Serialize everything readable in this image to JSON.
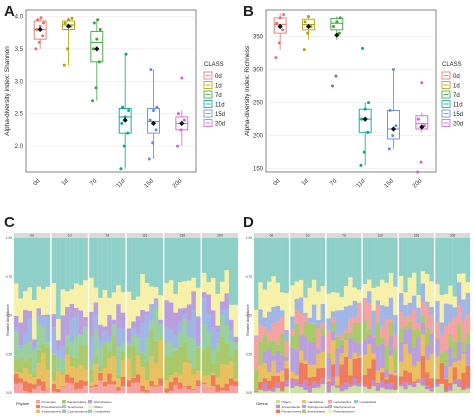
{
  "panels": [
    {
      "id": "A",
      "label": "A"
    },
    {
      "id": "B",
      "label": "B"
    },
    {
      "id": "C",
      "label": "C"
    },
    {
      "id": "D",
      "label": "D"
    }
  ],
  "legend": {
    "title": "CLASS",
    "items": [
      {
        "label": "0d",
        "color": "#e8736d"
      },
      {
        "label": "1d",
        "color": "#b79f00"
      },
      {
        "label": "7d",
        "color": "#3aa33a"
      },
      {
        "label": "11d",
        "color": "#00a5a5"
      },
      {
        "label": "15d",
        "color": "#5b8fe0"
      },
      {
        "label": "20d",
        "color": "#d65fd6"
      }
    ]
  },
  "chart_data": [
    {
      "panel": "A",
      "type": "box",
      "ylabel": "Alpha-diversity index: Shannon",
      "categories": [
        "0d",
        "1d",
        "7d",
        "11d",
        "15d",
        "20d"
      ],
      "ylim": [
        1.6,
        4.1
      ],
      "yticks": [
        2.0,
        2.5,
        3.0,
        3.5,
        4.0
      ],
      "ytick_labels": [
        "2.0",
        "2.5",
        "3.0",
        "3.5",
        "4.0"
      ],
      "boxes": [
        {
          "min": 3.5,
          "q1": 3.65,
          "median": 3.8,
          "q3": 3.93,
          "max": 3.98,
          "mean": 3.8,
          "points": [
            3.5,
            3.6,
            3.7,
            3.8,
            3.85,
            3.9,
            3.95,
            3.98
          ]
        },
        {
          "min": 3.25,
          "q1": 3.8,
          "median": 3.87,
          "q3": 3.93,
          "max": 3.98,
          "mean": 3.85,
          "points": [
            3.25,
            3.5,
            3.85,
            3.9,
            3.95,
            3.97
          ]
        },
        {
          "min": 2.7,
          "q1": 3.3,
          "median": 3.6,
          "q3": 3.77,
          "max": 3.95,
          "mean": 3.5,
          "points": [
            2.7,
            2.9,
            3.3,
            3.5,
            3.65,
            3.8,
            3.9,
            3.95
          ]
        },
        {
          "min": 1.65,
          "q1": 2.2,
          "median": 2.45,
          "q3": 2.58,
          "max": 3.42,
          "mean": 2.4,
          "points": [
            1.65,
            2.0,
            2.2,
            2.35,
            2.45,
            2.55,
            2.6,
            3.42
          ]
        },
        {
          "min": 1.8,
          "q1": 2.2,
          "median": 2.38,
          "q3": 2.58,
          "max": 3.18,
          "mean": 2.35,
          "points": [
            1.8,
            2.05,
            2.25,
            2.4,
            2.55,
            2.6,
            3.18
          ]
        },
        {
          "min": 2.0,
          "q1": 2.25,
          "median": 2.35,
          "q3": 2.45,
          "max": 2.55,
          "mean": 2.35,
          "points": [
            2.0,
            2.25,
            2.4,
            2.5,
            3.05
          ]
        }
      ]
    },
    {
      "panel": "B",
      "type": "box",
      "ylabel": "Alpha-diversity index: Richness",
      "categories": [
        "0d",
        "1d",
        "7d",
        "11d",
        "15d",
        "20d"
      ],
      "ylim": [
        145,
        390
      ],
      "yticks": [
        150,
        200,
        250,
        300,
        350
      ],
      "ytick_labels": [
        "150",
        "200",
        "250",
        "300",
        "350"
      ],
      "boxes": [
        {
          "min": 330,
          "q1": 355,
          "median": 368,
          "q3": 378,
          "max": 385,
          "mean": 365,
          "points": [
            318,
            340,
            360,
            370,
            378,
            383
          ]
        },
        {
          "min": 345,
          "q1": 360,
          "median": 368,
          "q3": 376,
          "max": 382,
          "mean": 365,
          "points": [
            330,
            355,
            365,
            372,
            380
          ]
        },
        {
          "min": 345,
          "q1": 360,
          "median": 370,
          "q3": 377,
          "max": 380,
          "mean": 352,
          "points": [
            275,
            290,
            355,
            365,
            372,
            378
          ]
        },
        {
          "min": 155,
          "q1": 205,
          "median": 225,
          "q3": 240,
          "max": 250,
          "mean": 225,
          "points": [
            155,
            175,
            205,
            225,
            240,
            250,
            332
          ]
        },
        {
          "min": 180,
          "q1": 195,
          "median": 210,
          "q3": 238,
          "max": 300,
          "mean": 210,
          "points": [
            180,
            200,
            215,
            238,
            300
          ]
        },
        {
          "min": 205,
          "q1": 210,
          "median": 218,
          "q3": 230,
          "max": 235,
          "mean": 213,
          "points": [
            145,
            160,
            215,
            225,
            280
          ]
        }
      ]
    },
    {
      "panel": "C",
      "type": "stacked-bar",
      "ylabel": "Relative Abundance",
      "facets": [
        "0d",
        "1d",
        "7d",
        "11d",
        "15d",
        "20d"
      ],
      "bars_per_facet": 8,
      "legend_title": "Phylum",
      "series": [
        {
          "name": "Firmicutes",
          "color": "#f4a3a3"
        },
        {
          "name": "Proteobacteria",
          "color": "#f07a5a"
        },
        {
          "name": "Actinobacteria",
          "color": "#e8c060"
        },
        {
          "name": "Bacteroidetes",
          "color": "#a9c96a"
        },
        {
          "name": "Tenericutes",
          "color": "#9ad0a0"
        },
        {
          "name": "Cyanobacteria",
          "color": "#9fb6e6"
        },
        {
          "name": "Spirochaetes",
          "color": "#b9a0dc"
        },
        {
          "name": "Others",
          "color": "#f6f0a8"
        },
        {
          "name": "Unclassified",
          "color": "#8ecfc8"
        }
      ]
    },
    {
      "panel": "D",
      "type": "stacked-bar",
      "ylabel": "Relative Abundance",
      "facets": [
        "0d",
        "1d",
        "7d",
        "11d",
        "15d",
        "20d"
      ],
      "bars_per_facet": 8,
      "legend_title": "Genus",
      "series": [
        {
          "name": "Others",
          "color": "#c9e0a0"
        },
        {
          "name": "Acinetobacter",
          "color": "#c48bd0"
        },
        {
          "name": "Pseudomonas",
          "color": "#f07a5a"
        },
        {
          "name": "Candidatus",
          "color": "#e8c060"
        },
        {
          "name": "Sphingomonas",
          "color": "#b9a0dc"
        },
        {
          "name": "Burkholderia",
          "color": "#a9c96a"
        },
        {
          "name": "Lactobacillus",
          "color": "#f4a3a3"
        },
        {
          "name": "Staphylococcus",
          "color": "#9fb6e6"
        },
        {
          "name": "Flavobacterium",
          "color": "#f6f0a8"
        },
        {
          "name": "Unclassified",
          "color": "#8ecfc8"
        }
      ]
    }
  ]
}
